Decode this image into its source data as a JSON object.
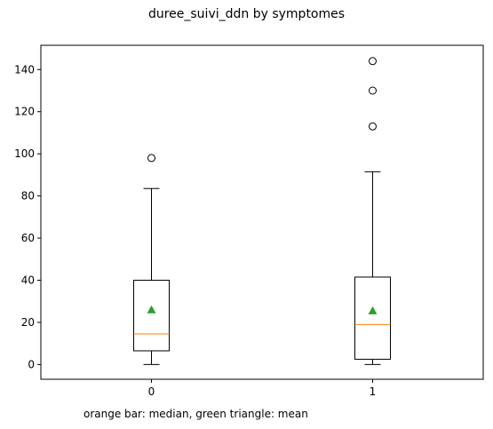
{
  "chart_data": {
    "type": "box",
    "title": "duree_suivi_ddn by symptomes",
    "xlabel": "",
    "ylabel": "",
    "note": "orange bar: median, green triangle: mean",
    "categories": [
      "0",
      "1"
    ],
    "ylim": [
      -7,
      151.5
    ],
    "yticks": [
      0,
      20,
      40,
      60,
      80,
      100,
      120,
      140
    ],
    "boxes": [
      {
        "category": "0",
        "whisker_low": 0,
        "q1": 6.5,
        "median": 14.5,
        "q3": 40,
        "whisker_high": 83.5,
        "mean": 26,
        "outliers": [
          98
        ]
      },
      {
        "category": "1",
        "whisker_low": 0,
        "q1": 2.5,
        "median": 19,
        "q3": 41.5,
        "whisker_high": 91.5,
        "mean": 25.5,
        "outliers": [
          113,
          130,
          144
        ]
      }
    ],
    "colors": {
      "median": "#ff7f0e",
      "mean": "#2ca02c",
      "box": "#000000"
    },
    "grid": false
  }
}
